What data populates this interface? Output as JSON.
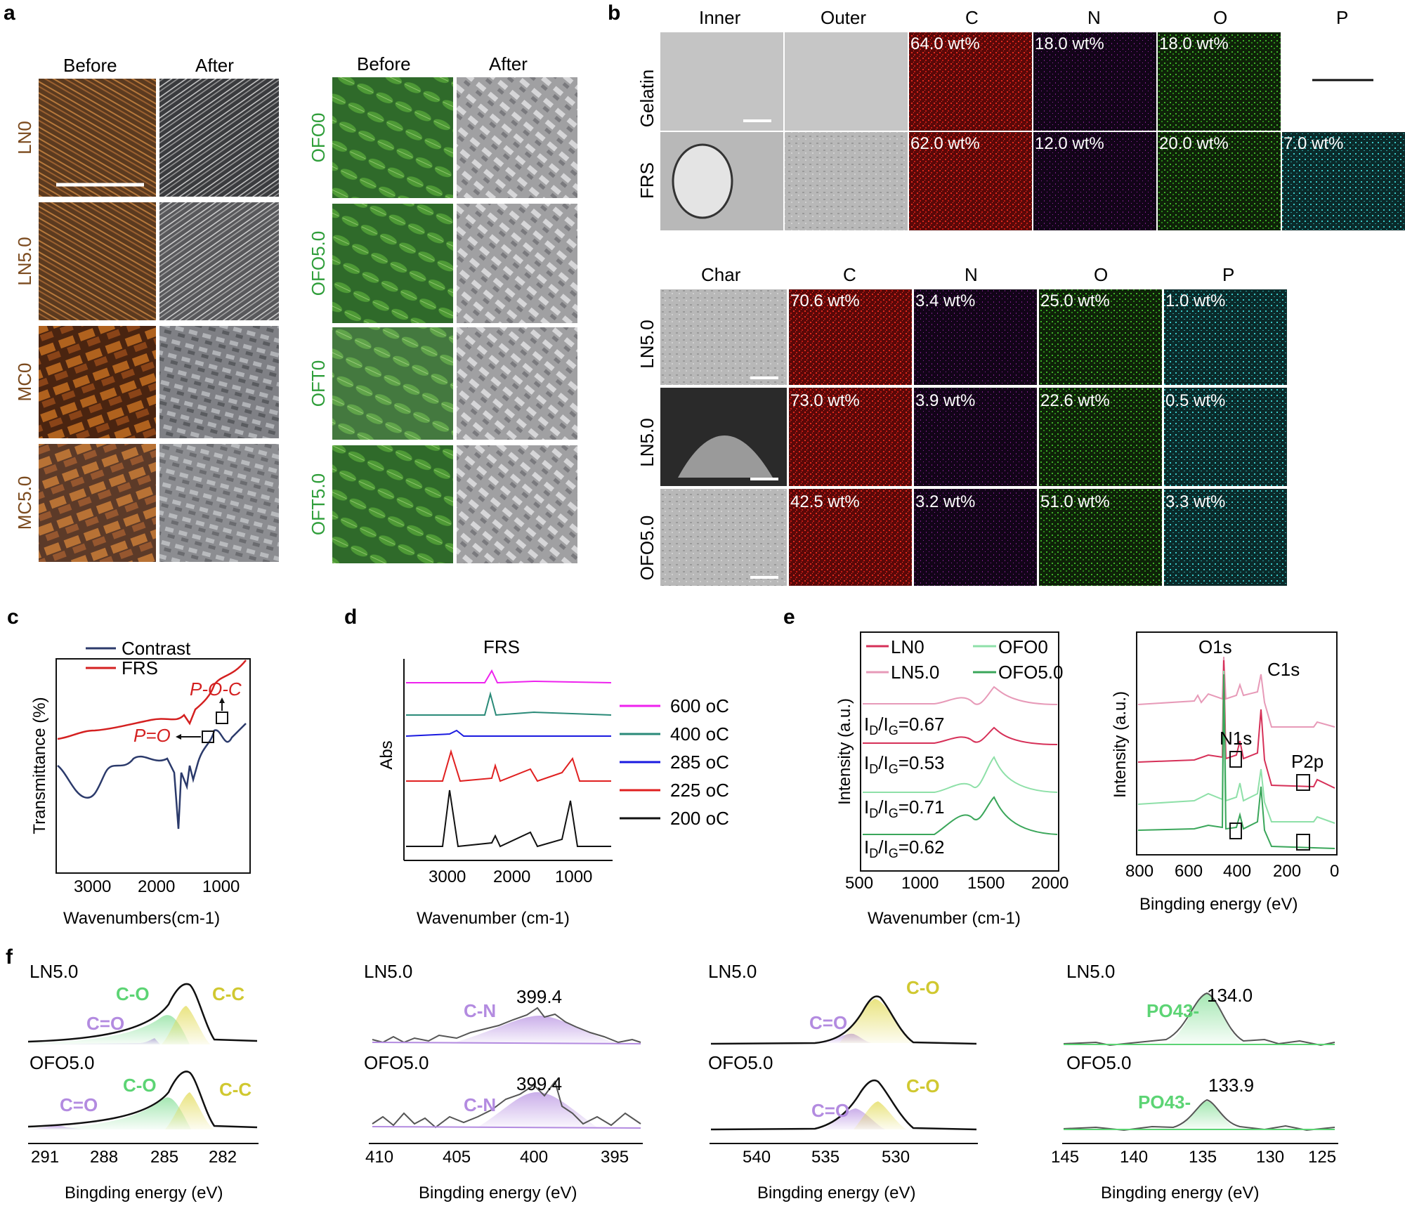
{
  "panels": {
    "a": "a",
    "b": "b",
    "c": "c",
    "d": "d",
    "e": "e",
    "f": "f"
  },
  "panel_a": {
    "col_before": "Before",
    "col_after": "After",
    "left_rows": [
      "LN0",
      "LN5.0",
      "MC0",
      "MC5.0"
    ],
    "right_rows": [
      "OFO0",
      "OFO5.0",
      "OFT0",
      "OFT5.0"
    ],
    "left_label_color": "#7b4a1e",
    "right_label_color": "#2f9e3a"
  },
  "panel_b_top": {
    "headers": [
      "Inner",
      "Outer",
      "C",
      "N",
      "O",
      "P"
    ],
    "rows": [
      {
        "label": "Gelatin",
        "values": [
          "64.0 wt%",
          "18.0 wt%",
          "18.0 wt%",
          ""
        ]
      },
      {
        "label": "FRS",
        "values": [
          "62.0 wt%",
          "12.0 wt%",
          "20.0 wt%",
          "7.0 wt%"
        ]
      }
    ]
  },
  "panel_b_bottom": {
    "headers": [
      "Char",
      "C",
      "N",
      "O",
      "P"
    ],
    "rows": [
      {
        "label": "LN5.0",
        "values": [
          "70.6 wt%",
          "3.4 wt%",
          "25.0 wt%",
          "1.0 wt%"
        ]
      },
      {
        "label": "LN5.0",
        "values": [
          "73.0 wt%",
          "3.9 wt%",
          "22.6 wt%",
          "0.5 wt%"
        ]
      },
      {
        "label": "OFO5.0",
        "values": [
          "42.5 wt%",
          "3.2 wt%",
          "51.0 wt%",
          "3.3 wt%"
        ]
      }
    ]
  },
  "colors": {
    "C": "#d0201c",
    "N": "#7a1e86",
    "O": "#2f9a20",
    "P": "#2fb8b8",
    "contrast": "#2b3a6b",
    "frs": "#d42020"
  },
  "chart_data": [
    {
      "id": "c",
      "type": "line",
      "xlabel": "Wavenumbers(cm-1)",
      "ylabel": "Transmittance (%)",
      "xlim": [
        3800,
        400
      ],
      "xticks": [
        "3000",
        "2000",
        "1000"
      ],
      "legend": [
        "Contrast",
        "FRS"
      ],
      "annotations": [
        "P=O",
        "P-O-C"
      ]
    },
    {
      "id": "d",
      "type": "line",
      "title": "FRS",
      "xlabel": "Wavenumber (cm-1)",
      "ylabel": "Abs",
      "xlim": [
        3700,
        500
      ],
      "xticks": [
        "3000",
        "2000",
        "1000"
      ],
      "series": [
        "600 oC",
        "400 oC",
        "285 oC",
        "225 oC",
        "200 oC"
      ],
      "series_colors": [
        "#ee22ee",
        "#2a8a78",
        "#1a1ae0",
        "#e02020",
        "#111111"
      ]
    },
    {
      "id": "e1",
      "type": "line",
      "xlabel": "Wavenumber (cm-1)",
      "ylabel": "Intensity (a.u.)",
      "xlim": [
        500,
        2000
      ],
      "xticks": [
        "500",
        "1000",
        "1500",
        "2000"
      ],
      "legend": [
        "LN0",
        "OFO0",
        "LN5.0",
        "OFO5.0"
      ],
      "ratios": [
        "0.67",
        "0.53",
        "0.71",
        "0.62"
      ]
    },
    {
      "id": "e2",
      "type": "line",
      "xlabel": "Bingding energy (eV)",
      "ylabel": "Intensity (a.u.)",
      "xlim": [
        800,
        0
      ],
      "xticks": [
        "800",
        "600",
        "400",
        "200",
        "0"
      ],
      "annotations": [
        "O1s",
        "C1s",
        "N1s",
        "P2p"
      ]
    },
    {
      "id": "f1",
      "type": "area",
      "xlabel": "Bingding energy (eV)",
      "xticks": [
        "291",
        "288",
        "285",
        "282"
      ],
      "samples": [
        "LN5.0",
        "OFO5.0"
      ],
      "peaks": [
        "C-O",
        "C-C",
        "C=O"
      ]
    },
    {
      "id": "f2",
      "type": "area",
      "xlabel": "Bingding energy (eV)",
      "xticks": [
        "410",
        "405",
        "400",
        "395"
      ],
      "samples": [
        "LN5.0",
        "OFO5.0"
      ],
      "peaks": [
        "C-N"
      ],
      "values": [
        "399.4",
        "399.4"
      ]
    },
    {
      "id": "f3",
      "type": "area",
      "xlabel": "Bingding energy (eV)",
      "xticks": [
        "540",
        "535",
        "530"
      ],
      "samples": [
        "LN5.0",
        "OFO5.0"
      ],
      "peaks": [
        "C-O",
        "C=O"
      ]
    },
    {
      "id": "f4",
      "type": "area",
      "xlabel": "Bingding energy (eV)",
      "xticks": [
        "145",
        "140",
        "135",
        "130",
        "125"
      ],
      "samples": [
        "LN5.0",
        "OFO5.0"
      ],
      "peaks": [
        "PO43-"
      ],
      "values": [
        "134.0",
        "133.9"
      ]
    }
  ]
}
